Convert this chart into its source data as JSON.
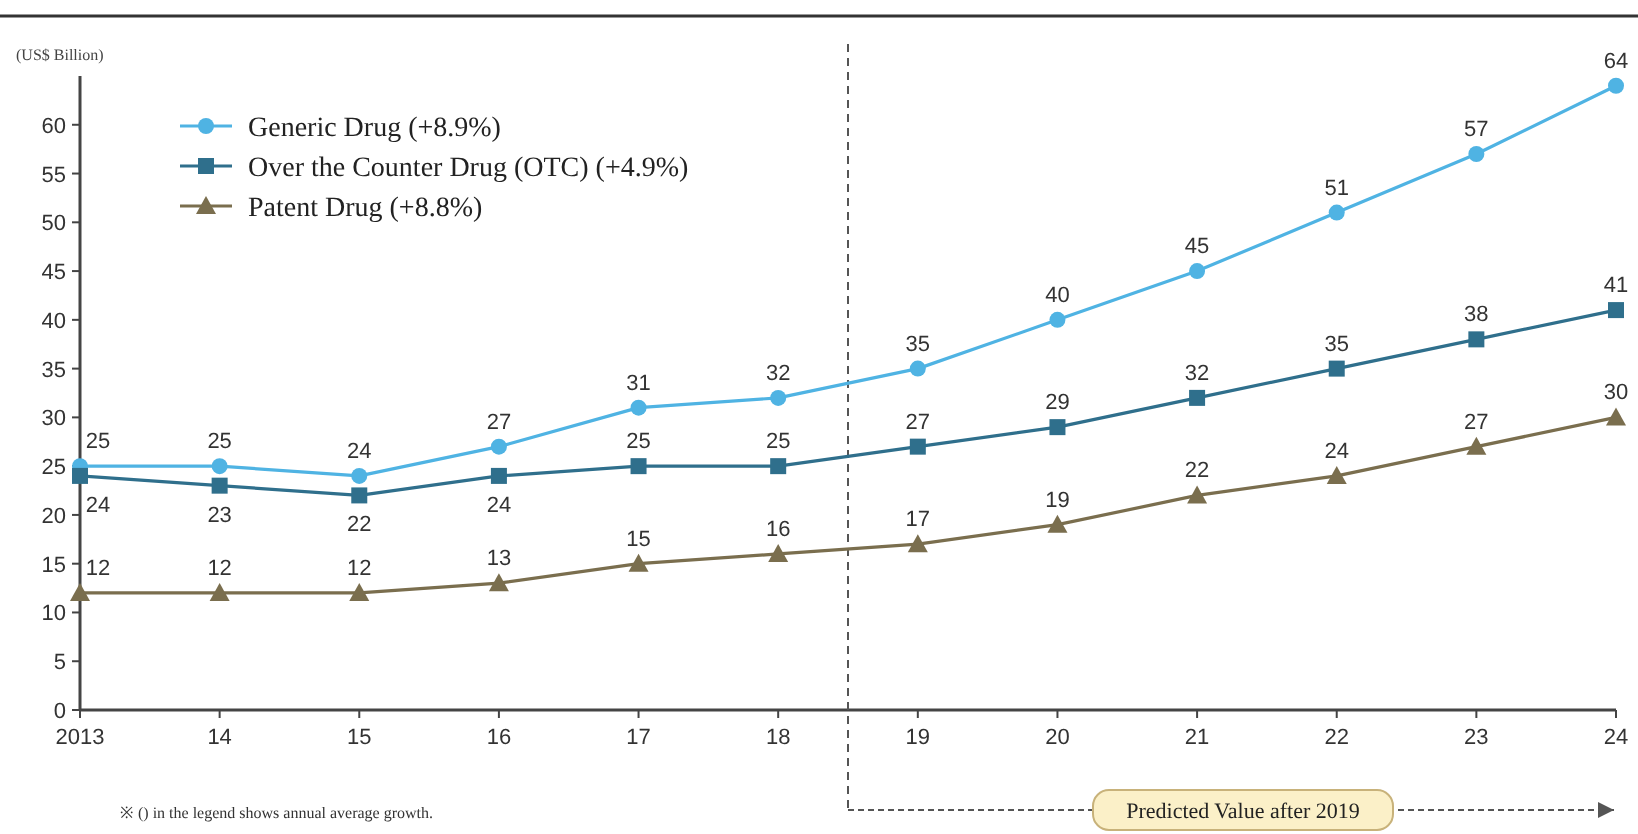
{
  "chart_data": {
    "type": "line",
    "ylabel": "(US$ Billion)",
    "x": [
      2013,
      2014,
      2015,
      2016,
      2017,
      2018,
      2019,
      2020,
      2021,
      2022,
      2023,
      2024
    ],
    "xlim": [
      2013,
      2024
    ],
    "xticks": [
      {
        "value": 2013,
        "label": "2013"
      },
      {
        "value": 2014,
        "label": "14"
      },
      {
        "value": 2015,
        "label": "15"
      },
      {
        "value": 2016,
        "label": "16"
      },
      {
        "value": 2017,
        "label": "17"
      },
      {
        "value": 2018,
        "label": "18"
      },
      {
        "value": 2019,
        "label": "19"
      },
      {
        "value": 2020,
        "label": "20"
      },
      {
        "value": 2021,
        "label": "21"
      },
      {
        "value": 2022,
        "label": "22"
      },
      {
        "value": 2023,
        "label": "23"
      },
      {
        "value": 2024,
        "label": "24"
      }
    ],
    "ylim": [
      0,
      65
    ],
    "yticks": [
      0,
      5,
      10,
      15,
      20,
      25,
      30,
      35,
      40,
      45,
      50,
      55,
      60
    ],
    "series": [
      {
        "name": "Generic Drug (+8.9%)",
        "color": "#4fb3e3",
        "marker": "circle",
        "values": [
          25,
          25,
          24,
          27,
          31,
          32,
          35,
          40,
          45,
          51,
          57,
          64
        ]
      },
      {
        "name": "Over the Counter Drug (OTC) (+4.9%)",
        "color": "#2f6f8c",
        "marker": "square",
        "values": [
          24,
          23,
          22,
          24,
          25,
          25,
          27,
          29,
          32,
          35,
          38,
          41
        ]
      },
      {
        "name": "Patent Drug (+8.8%)",
        "color": "#7a6e4e",
        "marker": "triangle",
        "values": [
          12,
          12,
          12,
          13,
          15,
          16,
          17,
          19,
          22,
          24,
          27,
          30
        ]
      }
    ],
    "data_labels": true,
    "grid": false,
    "legend": "top left",
    "ref_lines": [
      {
        "axis": "x",
        "value": 2018.5,
        "color": "#555555",
        "line_style": "dashed"
      }
    ],
    "annotations": [
      "※ () in the legend shows annual average growth.",
      "Predicted Value after 2019"
    ]
  }
}
